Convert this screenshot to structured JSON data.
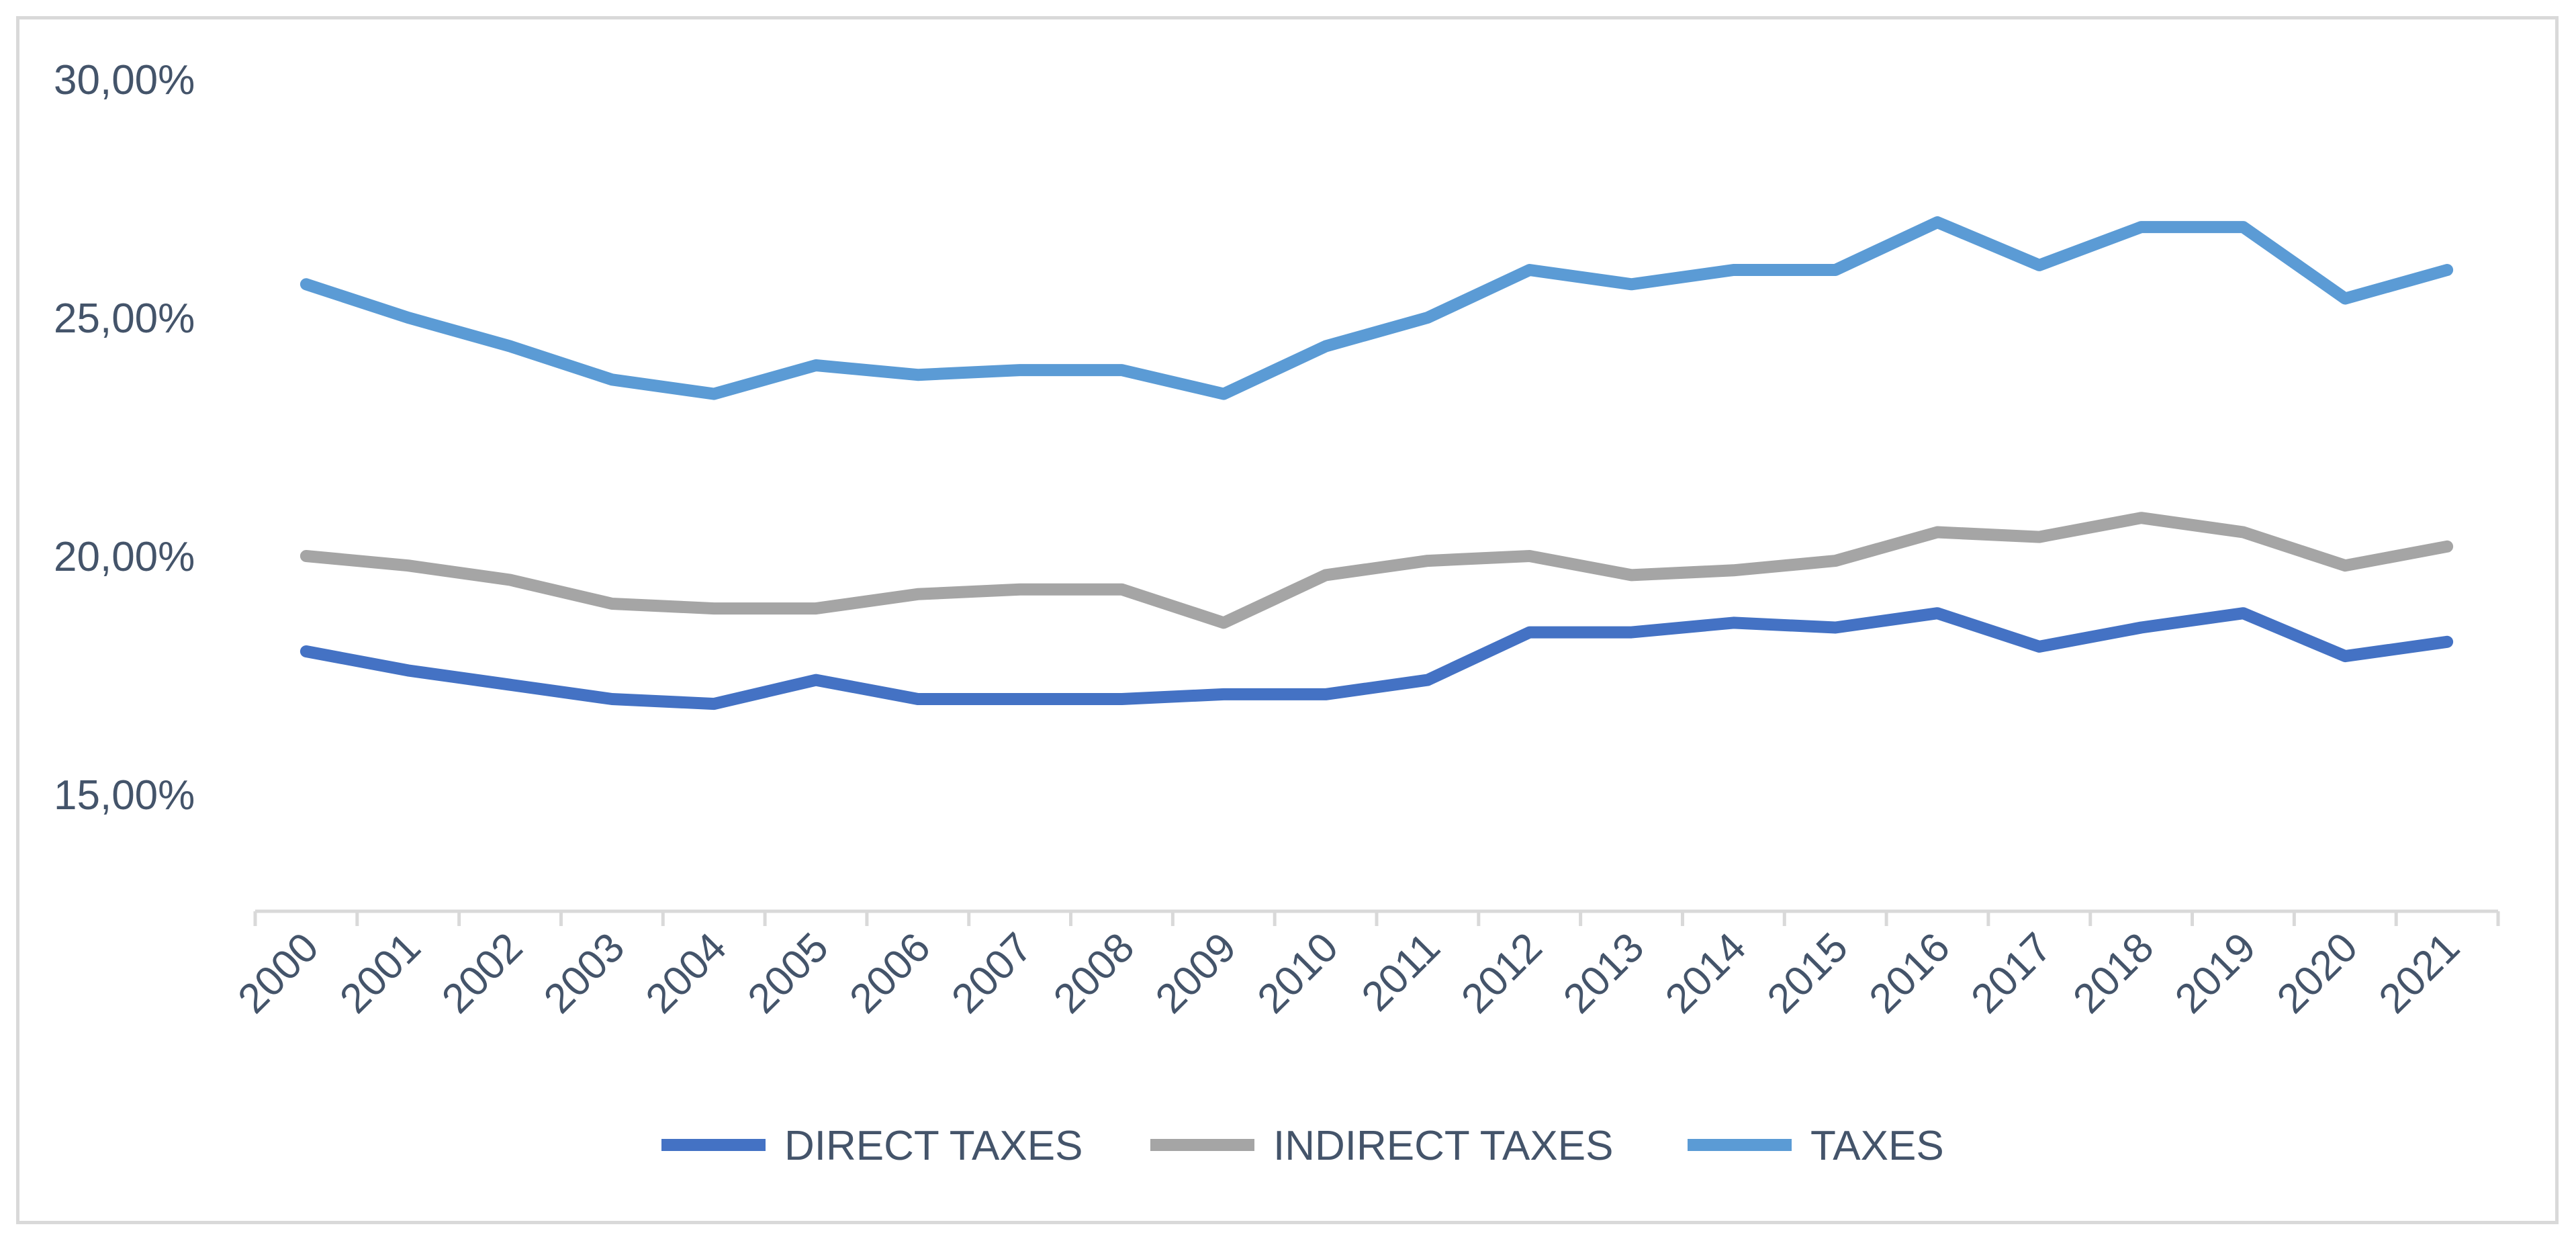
{
  "chart_data": {
    "type": "line",
    "title": "",
    "xlabel": "",
    "ylabel": "",
    "x": [
      "2000",
      "2001",
      "2002",
      "2003",
      "2004",
      "2005",
      "2006",
      "2007",
      "2008",
      "2009",
      "2010",
      "2011",
      "2012",
      "2013",
      "2014",
      "2015",
      "2016",
      "2017",
      "2018",
      "2019",
      "2020",
      "2021"
    ],
    "ylim": [
      12.5,
      30
    ],
    "y_ticks": [
      {
        "value": 30,
        "label": "30,00%"
      },
      {
        "value": 25,
        "label": "25,00%"
      },
      {
        "value": 20,
        "label": "20,00%"
      },
      {
        "value": 15,
        "label": "15,00%"
      }
    ],
    "grid": false,
    "legend_position": "bottom",
    "series": [
      {
        "name": "DIRECT TAXES",
        "color": "#4472c4",
        "values": [
          18.0,
          17.6,
          17.3,
          17.0,
          16.9,
          17.4,
          17.0,
          17.0,
          17.0,
          17.1,
          17.1,
          17.4,
          18.4,
          18.4,
          18.6,
          18.5,
          18.8,
          18.1,
          18.5,
          18.8,
          17.9,
          18.2
        ]
      },
      {
        "name": "INDIRECT TAXES",
        "color": "#a5a5a5",
        "values": [
          20.0,
          19.8,
          19.5,
          19.0,
          18.9,
          18.9,
          19.2,
          19.3,
          19.3,
          18.6,
          19.6,
          19.9,
          20.0,
          19.6,
          19.7,
          19.9,
          20.5,
          20.4,
          20.8,
          20.5,
          19.8,
          20.2
        ]
      },
      {
        "name": "TAXES",
        "color": "#5b9bd5",
        "values": [
          25.7,
          25.0,
          24.4,
          23.7,
          23.4,
          24.0,
          23.8,
          23.9,
          23.9,
          23.4,
          24.4,
          25.0,
          26.0,
          25.7,
          26.0,
          26.0,
          27.0,
          26.1,
          26.9,
          26.9,
          25.4,
          26.0
        ]
      }
    ]
  }
}
